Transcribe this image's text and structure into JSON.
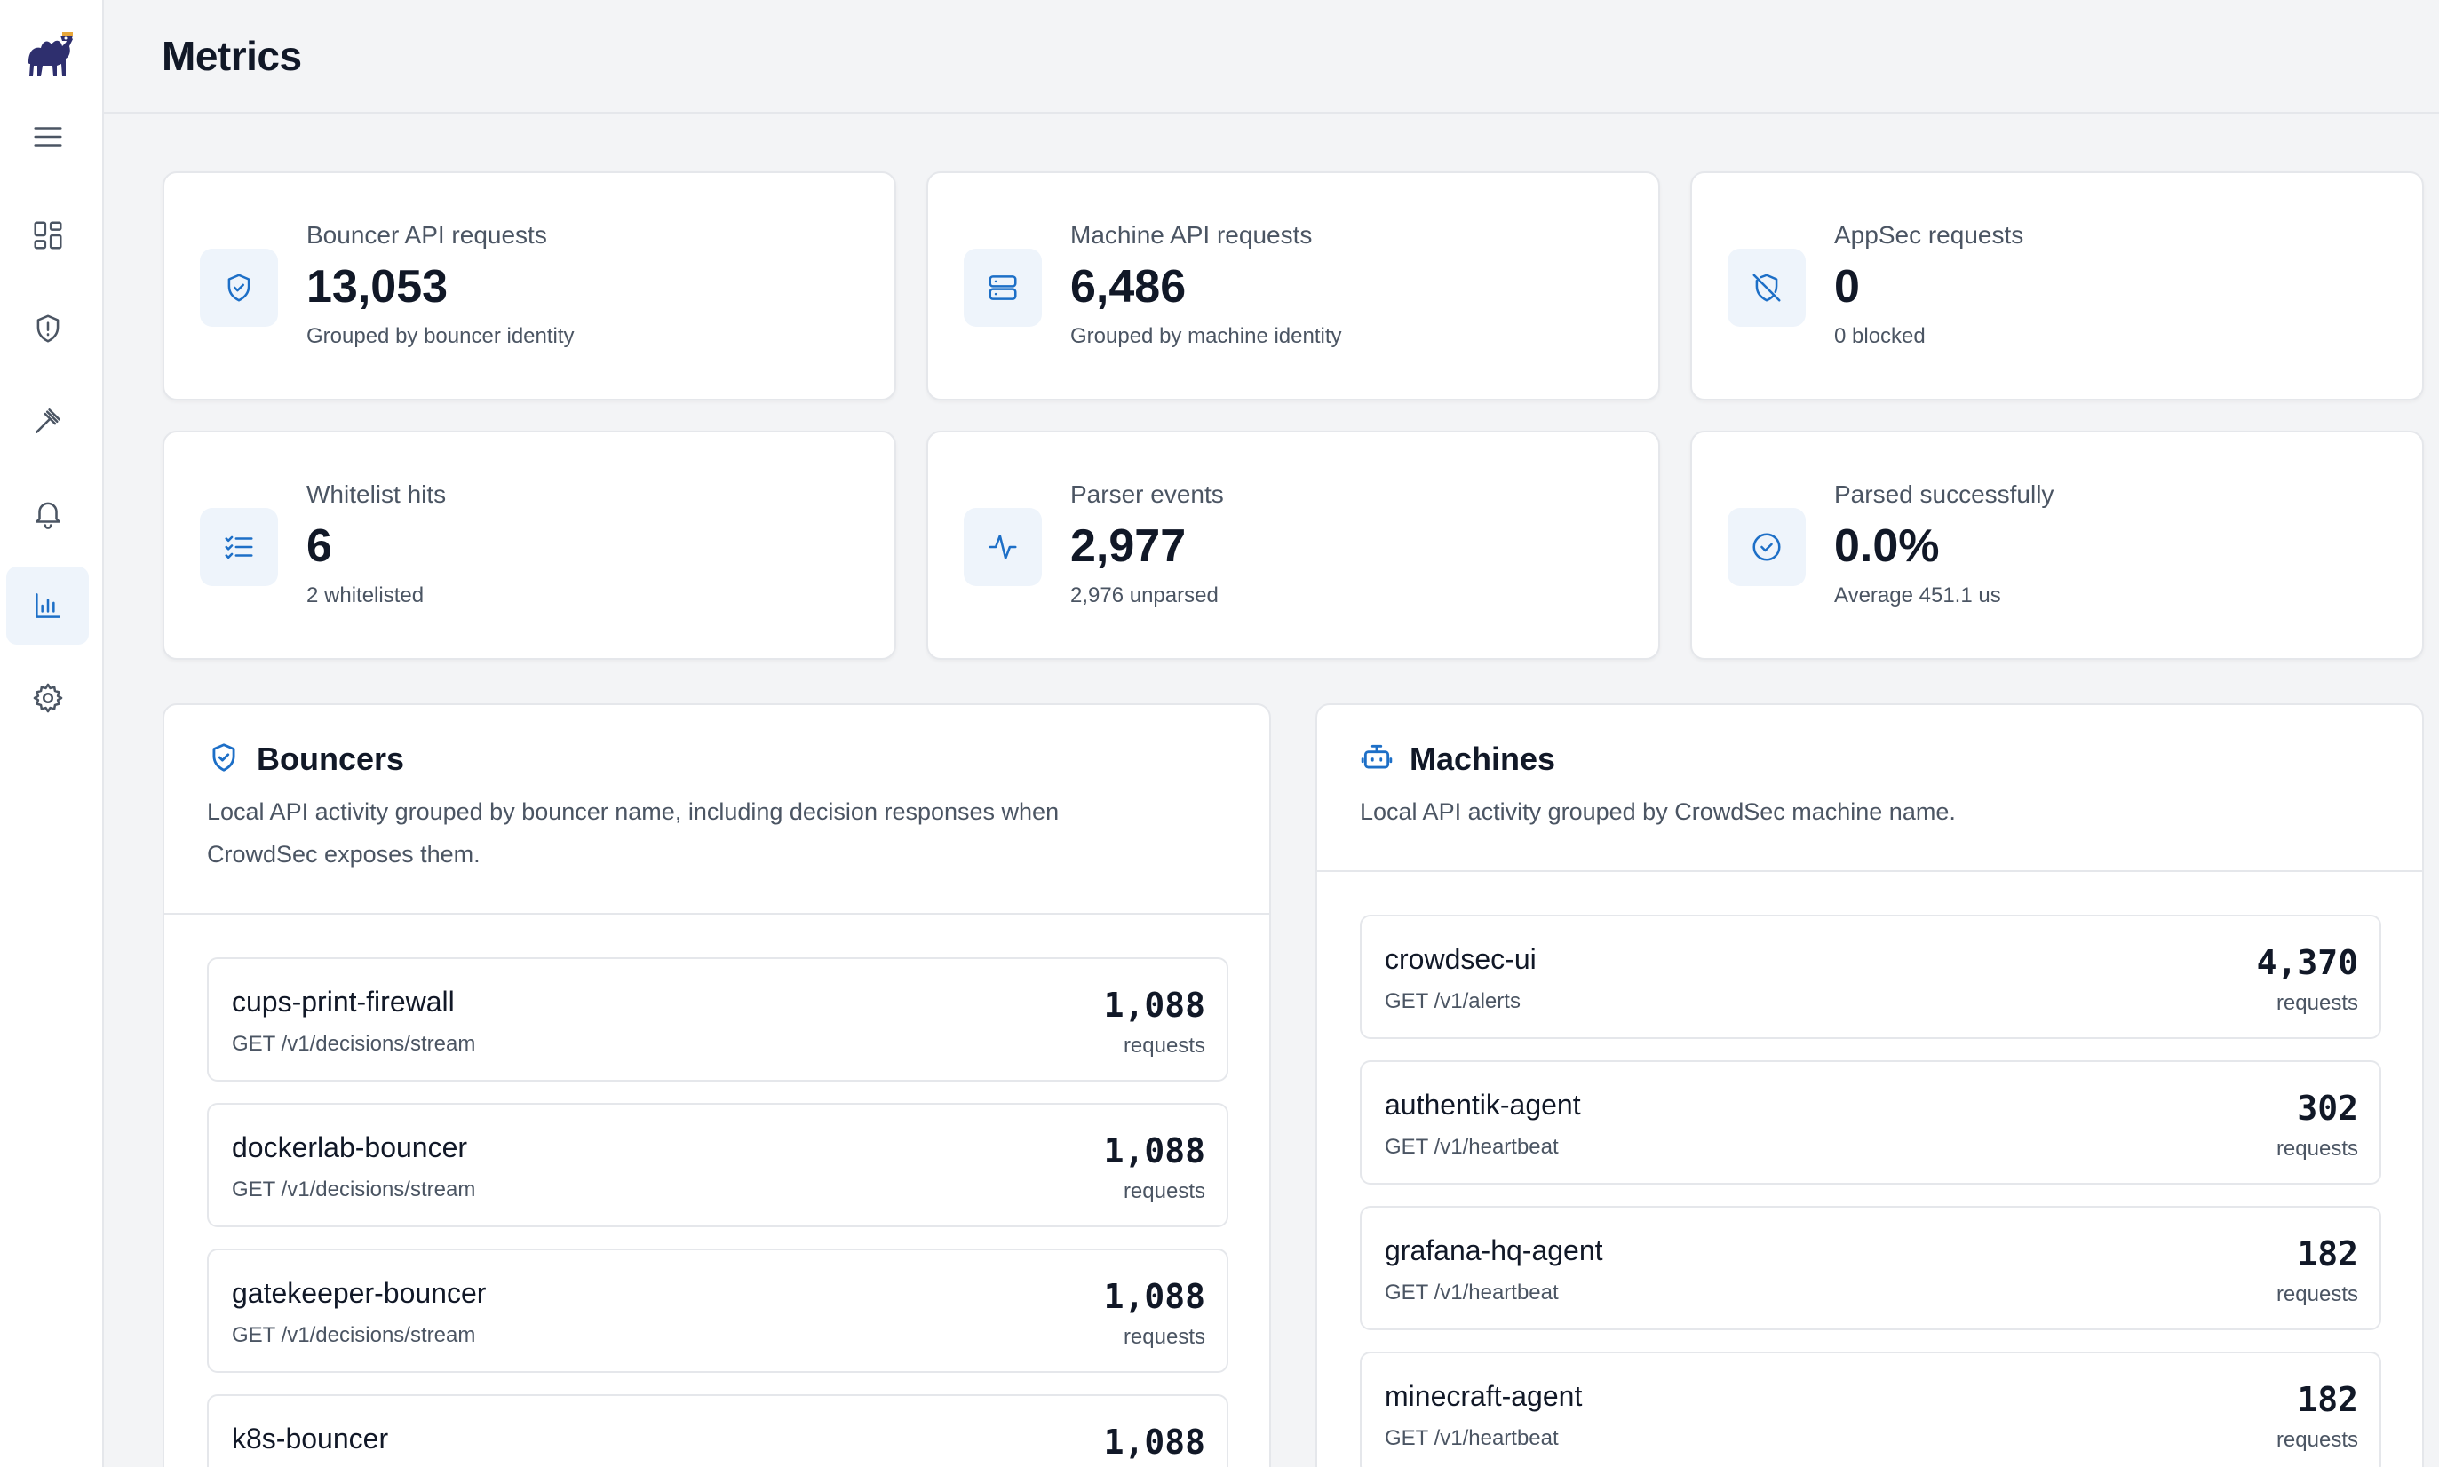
{
  "app": {
    "accent_color": "#1d6fc7",
    "logo_icon": "camel-logo-icon"
  },
  "sidebar": {
    "items": [
      {
        "name": "menu",
        "icon": "hamburger-icon"
      },
      {
        "name": "dashboard",
        "icon": "grid-icon"
      },
      {
        "name": "alerts",
        "icon": "shield-alert-icon"
      },
      {
        "name": "decisions",
        "icon": "gavel-icon"
      },
      {
        "name": "notifications",
        "icon": "bell-icon"
      },
      {
        "name": "metrics",
        "icon": "bar-chart-icon",
        "active": true
      },
      {
        "name": "settings",
        "icon": "gear-icon"
      }
    ]
  },
  "header": {
    "title": "Metrics"
  },
  "stats": [
    {
      "label": "Bouncer API requests",
      "value": "13,053",
      "sub": "Grouped by bouncer identity",
      "icon": "shield-check-icon"
    },
    {
      "label": "Machine API requests",
      "value": "6,486",
      "sub": "Grouped by machine identity",
      "icon": "server-icon"
    },
    {
      "label": "AppSec requests",
      "value": "0",
      "sub": "0 blocked",
      "icon": "shield-off-icon"
    },
    {
      "label": "Whitelist hits",
      "value": "6",
      "sub": "2 whitelisted",
      "icon": "list-check-icon"
    },
    {
      "label": "Parser events",
      "value": "2,977",
      "sub": "2,976 unparsed",
      "icon": "activity-icon"
    },
    {
      "label": "Parsed successfully",
      "value": "0.0%",
      "sub": "Average 451.1 us",
      "icon": "check-circle-icon"
    }
  ],
  "bouncers": {
    "title": "Bouncers",
    "description_line1": "Local API activity grouped by bouncer name, including decision responses when",
    "description_line2": "CrowdSec exposes them.",
    "rows": [
      {
        "name": "cups-print-firewall",
        "endpoint": "GET /v1/decisions/stream",
        "count": "1,088",
        "unit": "requests"
      },
      {
        "name": "dockerlab-bouncer",
        "endpoint": "GET /v1/decisions/stream",
        "count": "1,088",
        "unit": "requests"
      },
      {
        "name": "gatekeeper-bouncer",
        "endpoint": "GET /v1/decisions/stream",
        "count": "1,088",
        "unit": "requests"
      },
      {
        "name": "k8s-bouncer",
        "endpoint": "",
        "count": "1,088",
        "unit": ""
      }
    ]
  },
  "machines": {
    "title": "Machines",
    "description": "Local API activity grouped by CrowdSec machine name.",
    "rows": [
      {
        "name": "crowdsec-ui",
        "endpoint": "GET /v1/alerts",
        "count": "4,370",
        "unit": "requests"
      },
      {
        "name": "authentik-agent",
        "endpoint": "GET /v1/heartbeat",
        "count": "302",
        "unit": "requests"
      },
      {
        "name": "grafana-hq-agent",
        "endpoint": "GET /v1/heartbeat",
        "count": "182",
        "unit": "requests"
      },
      {
        "name": "minecraft-agent",
        "endpoint": "GET /v1/heartbeat",
        "count": "182",
        "unit": "requests"
      }
    ]
  }
}
